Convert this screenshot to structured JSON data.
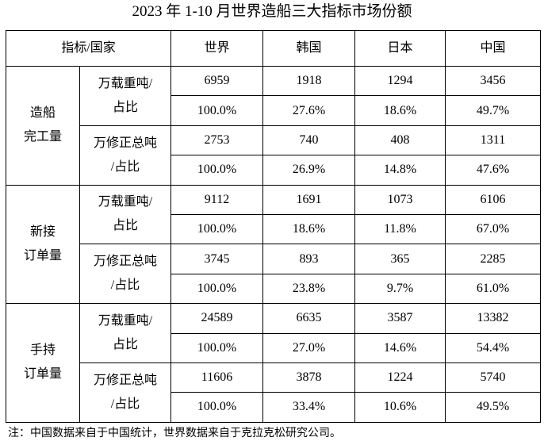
{
  "title": "2023 年 1-10 月世界造船三大指标市场份额",
  "header": {
    "corner": "指标/国家",
    "countries": [
      "世界",
      "韩国",
      "日本",
      "中国"
    ]
  },
  "groups": [
    {
      "label": [
        "造船",
        "完工量"
      ],
      "metrics": [
        {
          "label": [
            "万载重吨/",
            "占比"
          ],
          "values": [
            "6959",
            "1918",
            "1294",
            "3456"
          ],
          "shares": [
            "100.0%",
            "27.6%",
            "18.6%",
            "49.7%"
          ]
        },
        {
          "label": [
            "万修正总吨",
            "/占比"
          ],
          "values": [
            "2753",
            "740",
            "408",
            "1311"
          ],
          "shares": [
            "100.0%",
            "26.9%",
            "14.8%",
            "47.6%"
          ]
        }
      ]
    },
    {
      "label": [
        "新接",
        "订单量"
      ],
      "metrics": [
        {
          "label": [
            "万载重吨/",
            "占比"
          ],
          "values": [
            "9112",
            "1691",
            "1073",
            "6106"
          ],
          "shares": [
            "100.0%",
            "18.6%",
            "11.8%",
            "67.0%"
          ]
        },
        {
          "label": [
            "万修正总吨",
            "/占比"
          ],
          "values": [
            "3745",
            "893",
            "365",
            "2285"
          ],
          "shares": [
            "100.0%",
            "23.8%",
            "9.7%",
            "61.0%"
          ]
        }
      ]
    },
    {
      "label": [
        "手持",
        "订单量"
      ],
      "metrics": [
        {
          "label": [
            "万载重吨/",
            "占比"
          ],
          "values": [
            "24589",
            "6635",
            "3587",
            "13382"
          ],
          "shares": [
            "100.0%",
            "27.0%",
            "14.6%",
            "54.4%"
          ]
        },
        {
          "label": [
            "万修正总吨",
            "/占比"
          ],
          "values": [
            "11606",
            "3878",
            "1224",
            "5740"
          ],
          "shares": [
            "100.0%",
            "33.4%",
            "10.6%",
            "49.5%"
          ]
        }
      ]
    }
  ],
  "note": "注：中国数据来自于中国统计，世界数据来自于克拉克松研究公司。"
}
